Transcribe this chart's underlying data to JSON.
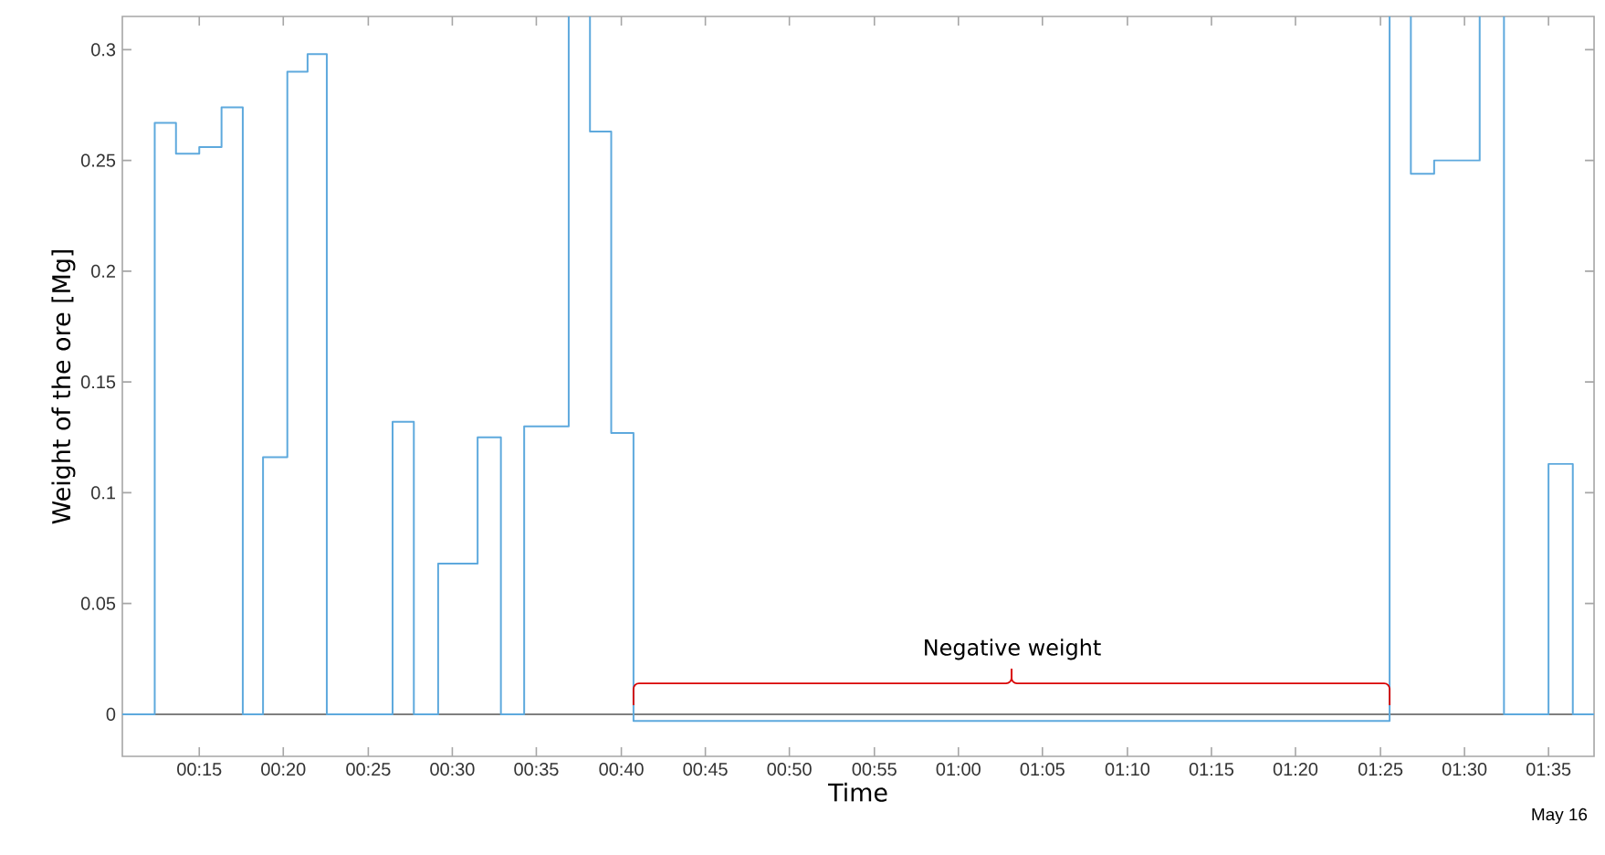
{
  "chart_data": {
    "type": "step",
    "xlabel": "Time",
    "ylabel": "Weight of the ore [Mg]",
    "x": [
      0.174,
      0.206,
      0.227,
      0.25,
      0.272,
      0.293,
      0.313,
      0.337,
      0.357,
      0.376,
      0.441,
      0.462,
      0.486,
      0.525,
      0.548,
      0.571,
      0.615,
      0.636,
      0.657,
      0.679,
      1.426,
      1.447,
      1.47,
      1.515,
      1.539,
      1.583,
      1.607,
      1.628
    ],
    "series": [
      {
        "color": "#5ea9dd",
        "values": [
          0,
          0.267,
          0.253,
          0.256,
          0.274,
          0,
          0.116,
          0.29,
          0.298,
          0,
          0.132,
          0,
          0.068,
          0.125,
          0,
          0.13,
          null,
          0.263,
          0.127,
          -0.003,
          null,
          0.244,
          0.25,
          null,
          0,
          0.113,
          0,
          0
        ]
      }
    ],
    "xlim": [
      0.174,
      1.628
    ],
    "ylim": [
      -0.019,
      0.315
    ],
    "xticks": [
      {
        "value": 0.25,
        "label": "00:15"
      },
      {
        "value": 0.333,
        "label": "00:20"
      },
      {
        "value": 0.417,
        "label": "00:25"
      },
      {
        "value": 0.5,
        "label": "00:30"
      },
      {
        "value": 0.583,
        "label": "00:35"
      },
      {
        "value": 0.667,
        "label": "00:40"
      },
      {
        "value": 0.75,
        "label": "00:45"
      },
      {
        "value": 0.833,
        "label": "00:50"
      },
      {
        "value": 0.917,
        "label": "00:55"
      },
      {
        "value": 1,
        "label": "01:00"
      },
      {
        "value": 1.083,
        "label": "01:05"
      },
      {
        "value": 1.167,
        "label": "01:10"
      },
      {
        "value": 1.25,
        "label": "01:15"
      },
      {
        "value": 1.333,
        "label": "01:20"
      },
      {
        "value": 1.417,
        "label": "01:25"
      },
      {
        "value": 1.5,
        "label": "01:30"
      },
      {
        "value": 1.583,
        "label": "01:35"
      }
    ],
    "yticks": [
      0,
      0.05,
      0.1,
      0.15,
      0.2,
      0.25,
      0.3
    ],
    "ref_lines": [
      {
        "axis": "y",
        "value": 0,
        "color": "#7f7f7f"
      }
    ],
    "annotations": [
      {
        "text": "Negative weight",
        "x": 1.053,
        "y": -0.003
      },
      "May 16"
    ],
    "grid": false
  }
}
